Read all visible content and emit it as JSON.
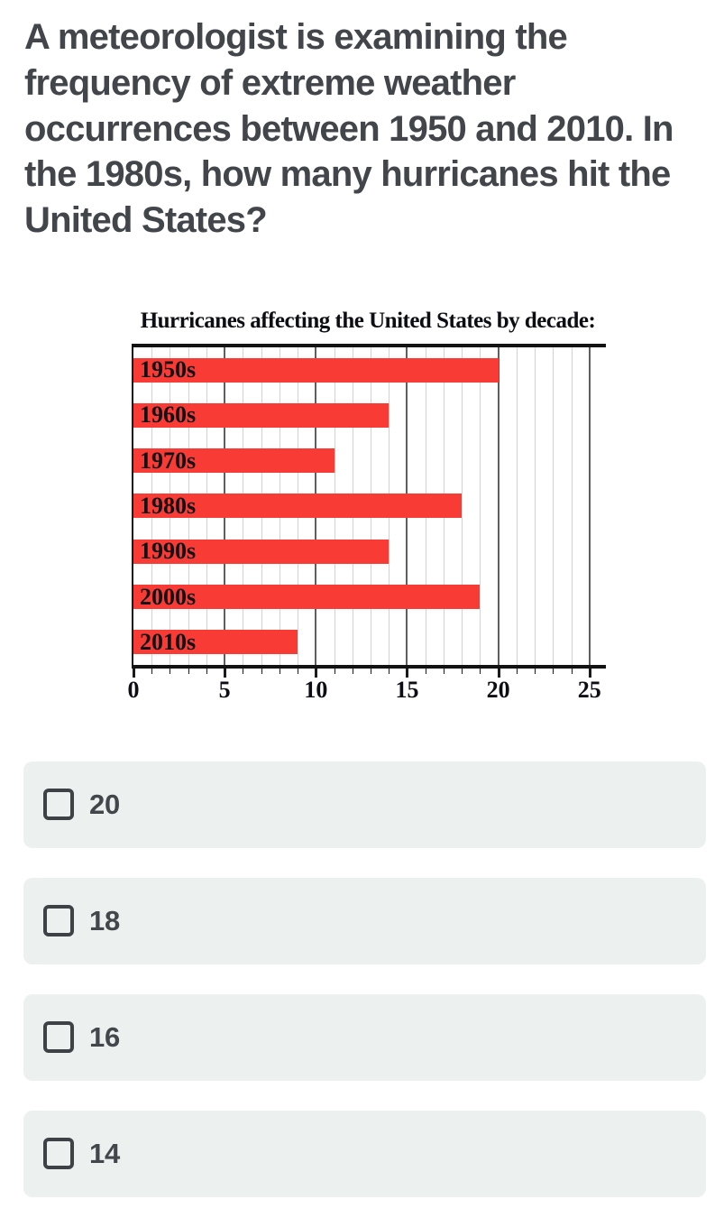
{
  "question": {
    "text": "A meteorologist is examining the frequency of extreme weather occurrences between 1950 and 2010. In the 1980s, how many hurricanes hit the United States?"
  },
  "chart_data": {
    "type": "bar",
    "orientation": "horizontal",
    "title": "Hurricanes affecting the United States by decade:",
    "categories": [
      "1950s",
      "1960s",
      "1970s",
      "1980s",
      "1990s",
      "2000s",
      "2010s"
    ],
    "values": [
      20,
      14,
      11,
      18,
      14,
      19,
      9
    ],
    "xlabel": "",
    "ylabel": "",
    "xlim": [
      0,
      25.9
    ],
    "x_ticks": [
      0,
      5,
      10,
      15,
      20,
      25
    ],
    "minor_tick_step": 1,
    "major_tick_step": 5,
    "grid": "vertical minor lines every 1 unit, major lines every 5 units",
    "legend_position": "none",
    "bar_color": "#f93b35",
    "label_position": "inside-left"
  },
  "options": [
    {
      "label": "20",
      "checked": false
    },
    {
      "label": "18",
      "checked": false
    },
    {
      "label": "16",
      "checked": false
    },
    {
      "label": "14",
      "checked": false
    }
  ],
  "colors": {
    "question_text": "#42464b",
    "chart_text": "#0d0d14",
    "bar_red": "#f93b35",
    "grid_minor": "#d2d2d2",
    "grid_major": "#5f5f5f",
    "axis": "#131313",
    "option_bg": "#ecf0ee",
    "option_text": "#43474b",
    "checkbox_border": "#3e4247",
    "page_bg": "#ffffff"
  }
}
